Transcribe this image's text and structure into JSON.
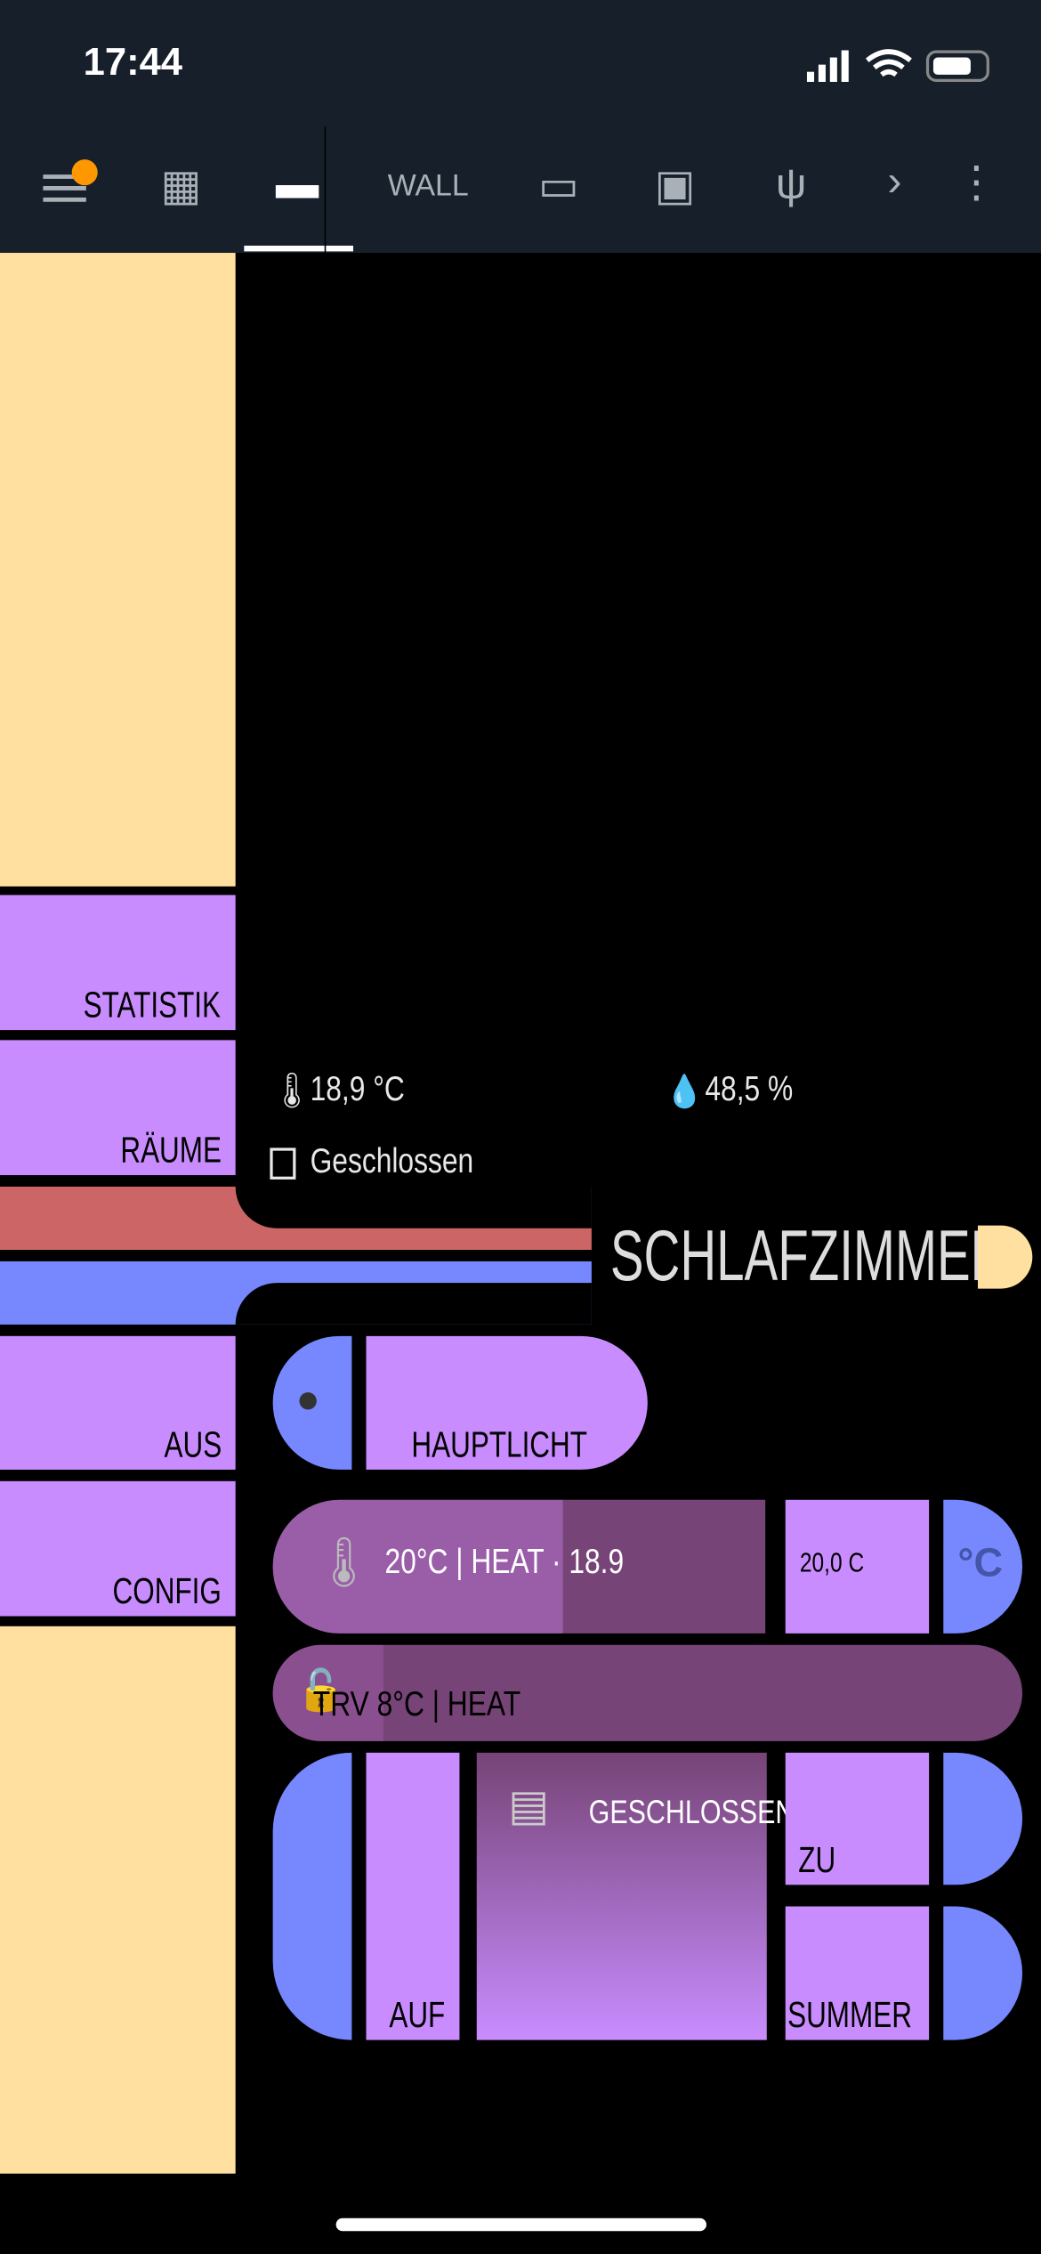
{
  "status_bar": {
    "time": "17:44"
  },
  "tabs": {
    "text_tab": "WALL"
  },
  "sidebar": {
    "buttons": [
      "STATISTIK",
      "RÄUME",
      "AUS",
      "CONFIG"
    ]
  },
  "sensors": {
    "temperature": "18,9 °C",
    "humidity": "48,5 %",
    "window": "Geschlossen"
  },
  "room": {
    "title": "SCHLAFZIMMER"
  },
  "controls": {
    "light": "HAUPTLICHT",
    "climate": {
      "state": "20°C | HEAT · 18.9",
      "setpoint": "20,0 C",
      "unit": "°C"
    },
    "trv": "TRV 8°C | HEAT",
    "cover": {
      "state": "GESCHLOSSEN",
      "open": "AUF",
      "close": "ZU",
      "summer": "SUMMER"
    }
  }
}
